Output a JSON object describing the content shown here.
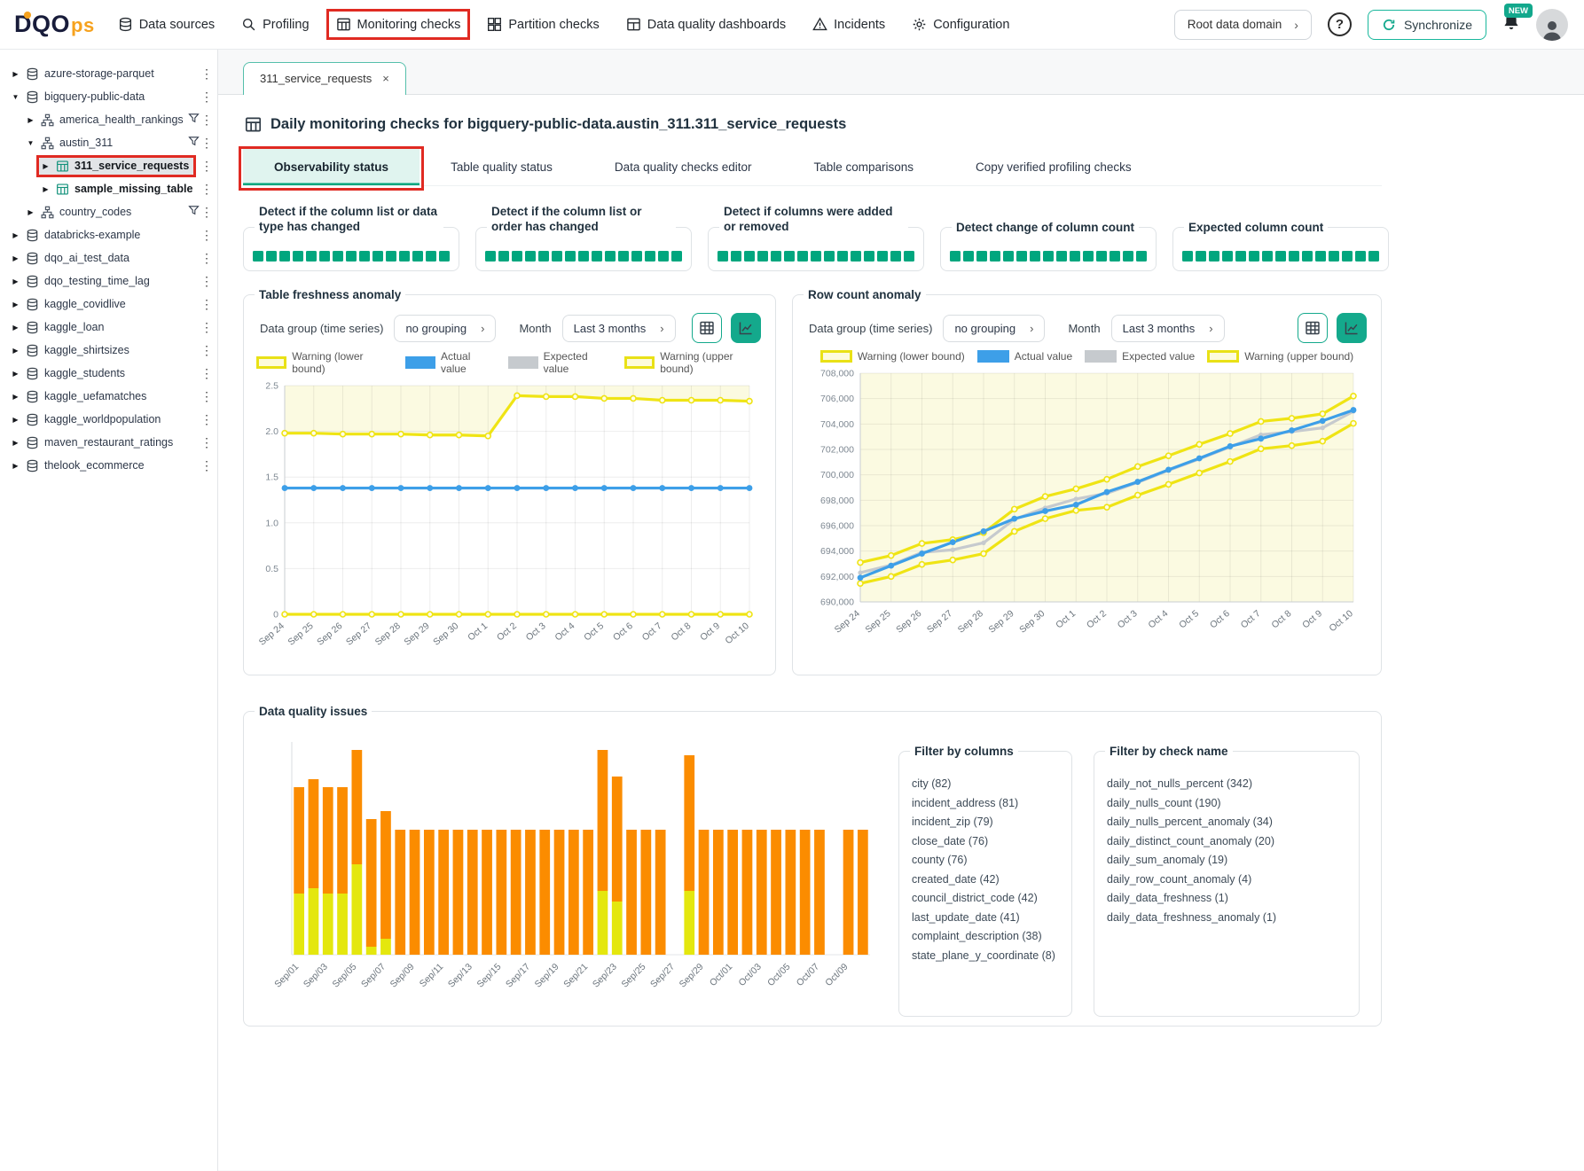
{
  "colors": {
    "teal": "#00a67e",
    "teal_button": "#14a98c",
    "warning_yellow": "#efe414",
    "actual_blue": "#3d9fe8",
    "expected_gray": "#c6cace",
    "issue_orange": "#fb8c00",
    "issue_yellow": "#e4e70e",
    "annotation_red": "#e02a22"
  },
  "topnav": {
    "logo_part1": "DQO",
    "logo_part2": "ps",
    "items": [
      {
        "label": "Data sources",
        "icon": "database-icon"
      },
      {
        "label": "Profiling",
        "icon": "profiling-icon"
      },
      {
        "label": "Monitoring checks",
        "icon": "monitoring-icon",
        "annotated": true
      },
      {
        "label": "Partition checks",
        "icon": "partition-icon"
      },
      {
        "label": "Data quality dashboards",
        "icon": "dashboards-icon"
      },
      {
        "label": "Incidents",
        "icon": "incidents-icon"
      },
      {
        "label": "Configuration",
        "icon": "configuration-icon"
      }
    ],
    "domain_button": "Root data domain",
    "help_label": "?",
    "synchronize_label": "Synchronize",
    "new_badge": "NEW"
  },
  "sidebar": {
    "items": [
      {
        "label": "azure-storage-parquet",
        "type": "connection",
        "level": 0,
        "expanded": false
      },
      {
        "label": "bigquery-public-data",
        "type": "connection",
        "level": 0,
        "expanded": true
      },
      {
        "label": "america_health_rankings",
        "type": "schema",
        "level": 1,
        "expanded": false,
        "filter": true
      },
      {
        "label": "austin_311",
        "type": "schema",
        "level": 1,
        "expanded": true,
        "filter": true
      },
      {
        "label": "311_service_requests",
        "type": "table",
        "level": 2,
        "expanded": false,
        "selected": true,
        "annotated": true
      },
      {
        "label": "sample_missing_table",
        "type": "table",
        "level": 2,
        "expanded": false
      },
      {
        "label": "country_codes",
        "type": "schema",
        "level": 1,
        "expanded": false,
        "filter": true
      },
      {
        "label": "databricks-example",
        "type": "connection",
        "level": 0,
        "expanded": false
      },
      {
        "label": "dqo_ai_test_data",
        "type": "connection",
        "level": 0,
        "expanded": false
      },
      {
        "label": "dqo_testing_time_lag",
        "type": "connection",
        "level": 0,
        "expanded": false
      },
      {
        "label": "kaggle_covidlive",
        "type": "connection",
        "level": 0,
        "expanded": false
      },
      {
        "label": "kaggle_loan",
        "type": "connection",
        "level": 0,
        "expanded": false
      },
      {
        "label": "kaggle_shirtsizes",
        "type": "connection",
        "level": 0,
        "expanded": false
      },
      {
        "label": "kaggle_students",
        "type": "connection",
        "level": 0,
        "expanded": false
      },
      {
        "label": "kaggle_uefamatches",
        "type": "connection",
        "level": 0,
        "expanded": false
      },
      {
        "label": "kaggle_worldpopulation",
        "type": "connection",
        "level": 0,
        "expanded": false
      },
      {
        "label": "maven_restaurant_ratings",
        "type": "connection",
        "level": 0,
        "expanded": false
      },
      {
        "label": "thelook_ecommerce",
        "type": "connection",
        "level": 0,
        "expanded": false
      }
    ]
  },
  "main": {
    "open_tab": {
      "label": "311_service_requests",
      "close": "×"
    },
    "page_title": "Daily monitoring checks for bigquery-public-data.austin_311.311_service_requests",
    "subtabs": [
      {
        "label": "Observability status",
        "active": true,
        "annotated": true
      },
      {
        "label": "Table quality status"
      },
      {
        "label": "Data quality checks editor"
      },
      {
        "label": "Table comparisons"
      },
      {
        "label": "Copy verified profiling checks"
      }
    ],
    "status_panels": [
      {
        "title": "Detect if the column list or data type has changed",
        "squares": 15,
        "two_line": true
      },
      {
        "title": "Detect if the column list or order has changed",
        "squares": 15,
        "two_line": true
      },
      {
        "title": "Detect if columns were added or removed",
        "squares": 15,
        "two_line": true
      },
      {
        "title": "Detect change of column count",
        "squares": 15,
        "two_line": false
      },
      {
        "title": "Expected column count",
        "squares": 15,
        "two_line": false
      }
    ],
    "chart_controls": {
      "group_label": "Data group (time series)",
      "group_value": "no grouping",
      "month_label": "Month",
      "month_value": "Last 3 months"
    },
    "chart_legend": [
      {
        "label": "Warning (lower bound)",
        "swatch": "yellow"
      },
      {
        "label": "Actual value",
        "swatch": "blue"
      },
      {
        "label": "Expected value",
        "swatch": "gray"
      },
      {
        "label": "Warning (upper bound)",
        "swatch": "yellow"
      }
    ],
    "issues_panel": {
      "title": "Data quality issues",
      "filter_columns": {
        "title": "Filter by columns",
        "items": [
          {
            "name": "city",
            "count": 82
          },
          {
            "name": "incident_address",
            "count": 81
          },
          {
            "name": "incident_zip",
            "count": 79
          },
          {
            "name": "close_date",
            "count": 76
          },
          {
            "name": "county",
            "count": 76
          },
          {
            "name": "created_date",
            "count": 42
          },
          {
            "name": "council_district_code",
            "count": 42
          },
          {
            "name": "last_update_date",
            "count": 41
          },
          {
            "name": "complaint_description",
            "count": 38
          },
          {
            "name": "state_plane_y_coordinate",
            "count": 8
          }
        ]
      },
      "filter_checks": {
        "title": "Filter by check name",
        "items": [
          {
            "name": "daily_not_nulls_percent",
            "count": 342
          },
          {
            "name": "daily_nulls_count",
            "count": 190
          },
          {
            "name": "daily_nulls_percent_anomaly",
            "count": 34
          },
          {
            "name": "daily_distinct_count_anomaly",
            "count": 20
          },
          {
            "name": "daily_sum_anomaly",
            "count": 19
          },
          {
            "name": "daily_row_count_anomaly",
            "count": 4
          },
          {
            "name": "daily_data_freshness",
            "count": 1
          },
          {
            "name": "daily_data_freshness_anomaly",
            "count": 1
          }
        ]
      }
    }
  },
  "chart_data": [
    {
      "type": "line",
      "title": "Table freshness anomaly",
      "x": [
        "Sep 24",
        "Sep 25",
        "Sep 26",
        "Sep 27",
        "Sep 28",
        "Sep 29",
        "Sep 30",
        "Oct 1",
        "Oct 2",
        "Oct 3",
        "Oct 4",
        "Oct 5",
        "Oct 6",
        "Oct 7",
        "Oct 8",
        "Oct 9",
        "Oct 10"
      ],
      "ylim": [
        0,
        2.5
      ],
      "yticks": [
        0,
        0.5,
        1.0,
        1.5,
        2.0,
        2.5
      ],
      "yfmt": "dec1",
      "bg": "above-upper",
      "legend_position": "top",
      "grid": true,
      "draw_order": [
        2,
        0,
        3,
        1
      ],
      "series": [
        {
          "name": "Warning (lower bound)",
          "color": "yellow",
          "values": [
            0,
            0,
            0,
            0,
            0,
            0,
            0,
            0,
            0,
            0,
            0,
            0,
            0,
            0,
            0,
            0,
            0
          ]
        },
        {
          "name": "Actual value",
          "color": "blue",
          "values": [
            1.38,
            1.38,
            1.38,
            1.38,
            1.38,
            1.38,
            1.38,
            1.38,
            1.38,
            1.38,
            1.38,
            1.38,
            1.38,
            1.38,
            1.38,
            1.38,
            1.38
          ]
        },
        {
          "name": "Expected value",
          "color": "gray",
          "values": [
            1.38,
            1.38,
            1.38,
            1.38,
            1.38,
            1.38,
            1.38,
            1.38,
            1.38,
            1.38,
            1.38,
            1.38,
            1.38,
            1.38,
            1.38,
            1.38,
            1.38
          ]
        },
        {
          "name": "Warning (upper bound)",
          "color": "yellow",
          "values": [
            1.98,
            1.98,
            1.97,
            1.97,
            1.97,
            1.96,
            1.96,
            1.95,
            2.39,
            2.38,
            2.38,
            2.36,
            2.36,
            2.34,
            2.34,
            2.34,
            2.33
          ]
        }
      ]
    },
    {
      "type": "line",
      "title": "Row count anomaly",
      "x": [
        "Sep 24",
        "Sep 25",
        "Sep 26",
        "Sep 27",
        "Sep 28",
        "Sep 29",
        "Sep 30",
        "Oct 1",
        "Oct 2",
        "Oct 3",
        "Oct 4",
        "Oct 5",
        "Oct 6",
        "Oct 7",
        "Oct 8",
        "Oct 9",
        "Oct 10"
      ],
      "ylim": [
        690000,
        708000
      ],
      "yticks": [
        690000,
        692000,
        694000,
        696000,
        698000,
        700000,
        702000,
        704000,
        706000,
        708000
      ],
      "yfmt": "comma",
      "bg": "full",
      "legend_position": "top",
      "grid": true,
      "draw_order": [
        0,
        3,
        2,
        1
      ],
      "series": [
        {
          "name": "Warning (lower bound)",
          "color": "yellow",
          "values": [
            691450,
            692000,
            692950,
            693300,
            693800,
            695550,
            696550,
            697200,
            697450,
            698400,
            699250,
            700150,
            701050,
            702050,
            702300,
            702650,
            704050
          ]
        },
        {
          "name": "Actual value",
          "color": "blue",
          "values": [
            691900,
            692850,
            693800,
            694700,
            695550,
            696550,
            697150,
            697650,
            698650,
            699450,
            700400,
            701300,
            702250,
            702850,
            703500,
            704250,
            705100
          ]
        },
        {
          "name": "Expected value",
          "color": "gray",
          "values": [
            692300,
            692900,
            693900,
            694100,
            694650,
            696500,
            697400,
            698100,
            698550,
            699400,
            700350,
            701250,
            702200,
            703150,
            703400,
            703700,
            705000
          ]
        },
        {
          "name": "Warning (upper bound)",
          "color": "yellow",
          "values": [
            693100,
            693650,
            694600,
            694900,
            695450,
            697300,
            698300,
            698900,
            699650,
            700650,
            701500,
            702400,
            703250,
            704200,
            704450,
            704800,
            706200
          ]
        }
      ]
    },
    {
      "type": "bar",
      "title": "Data quality issues",
      "stacked": true,
      "categories": [
        "Sep/01",
        "Sep/02",
        "Sep/03",
        "Sep/04",
        "Sep/05",
        "Sep/06",
        "Sep/07",
        "Sep/08",
        "Sep/09",
        "Sep/10",
        "Sep/11",
        "Sep/12",
        "Sep/13",
        "Sep/14",
        "Sep/15",
        "Sep/16",
        "Sep/17",
        "Sep/18",
        "Sep/19",
        "Sep/20",
        "Sep/21",
        "Sep/22",
        "Sep/23",
        "Sep/24",
        "Sep/25",
        "Sep/26",
        "Sep/27",
        "Sep/28",
        "Sep/29",
        "Sep/30",
        "Oct/01",
        "Oct/02",
        "Oct/03",
        "Oct/04",
        "Oct/05",
        "Oct/06",
        "Oct/07",
        "Oct/08",
        "Oct/09",
        "Oct/10"
      ],
      "tick_every": 2,
      "ymax": 80,
      "series": [
        {
          "name": "warning-issues",
          "color": "#e4e70e",
          "values": [
            23,
            25,
            23,
            23,
            34,
            3,
            6,
            0,
            0,
            0,
            0,
            0,
            0,
            0,
            0,
            0,
            0,
            0,
            0,
            0,
            0,
            24,
            20,
            0,
            0,
            0,
            0,
            24,
            0,
            0,
            0,
            0,
            0,
            0,
            0,
            0,
            0,
            0,
            0,
            0
          ]
        },
        {
          "name": "error-issues",
          "color": "#fb8c00",
          "values": [
            40,
            41,
            40,
            40,
            43,
            48,
            48,
            47,
            47,
            47,
            47,
            47,
            47,
            47,
            47,
            47,
            47,
            47,
            47,
            47,
            47,
            53,
            47,
            47,
            47,
            47,
            0,
            51,
            47,
            47,
            47,
            47,
            47,
            47,
            47,
            47,
            47,
            0,
            47,
            47
          ]
        }
      ]
    }
  ]
}
